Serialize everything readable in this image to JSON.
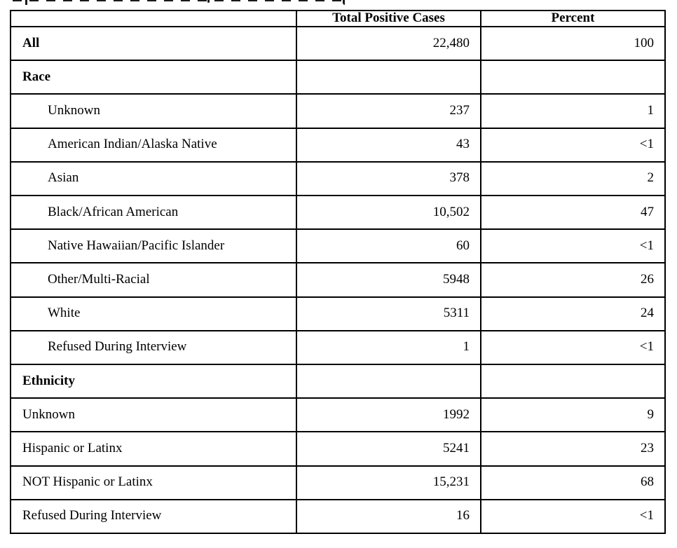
{
  "table": {
    "columns": [
      "",
      "Total Positive Cases",
      "Percent"
    ],
    "rows": [
      {
        "label": "All",
        "cases": "22,480",
        "percent": "100",
        "style": "bold"
      },
      {
        "label": "Race",
        "cases": "",
        "percent": "",
        "style": "section"
      },
      {
        "label": "Unknown",
        "cases": "237",
        "percent": "1",
        "style": "indent"
      },
      {
        "label": "American Indian/Alaska Native",
        "cases": "43",
        "percent": "<1",
        "style": "indent"
      },
      {
        "label": "Asian",
        "cases": "378",
        "percent": "2",
        "style": "indent"
      },
      {
        "label": "Black/African American",
        "cases": "10,502",
        "percent": "47",
        "style": "indent"
      },
      {
        "label": "Native Hawaiian/Pacific Islander",
        "cases": "60",
        "percent": "<1",
        "style": "indent"
      },
      {
        "label": "Other/Multi-Racial",
        "cases": "5948",
        "percent": "26",
        "style": "indent"
      },
      {
        "label": "White",
        "cases": "5311",
        "percent": "24",
        "style": "indent"
      },
      {
        "label": "Refused During Interview",
        "cases": "1",
        "percent": "<1",
        "style": "indent"
      },
      {
        "label": "Ethnicity",
        "cases": "",
        "percent": "",
        "style": "section"
      },
      {
        "label": "Unknown",
        "cases": "1992",
        "percent": "9",
        "style": "plain"
      },
      {
        "label": "Hispanic or Latinx",
        "cases": "5241",
        "percent": "23",
        "style": "plain"
      },
      {
        "label": "NOT Hispanic or Latinx",
        "cases": "15,231",
        "percent": "68",
        "style": "plain"
      },
      {
        "label": "Refused During Interview",
        "cases": "16",
        "percent": "<1",
        "style": "plain"
      }
    ]
  }
}
